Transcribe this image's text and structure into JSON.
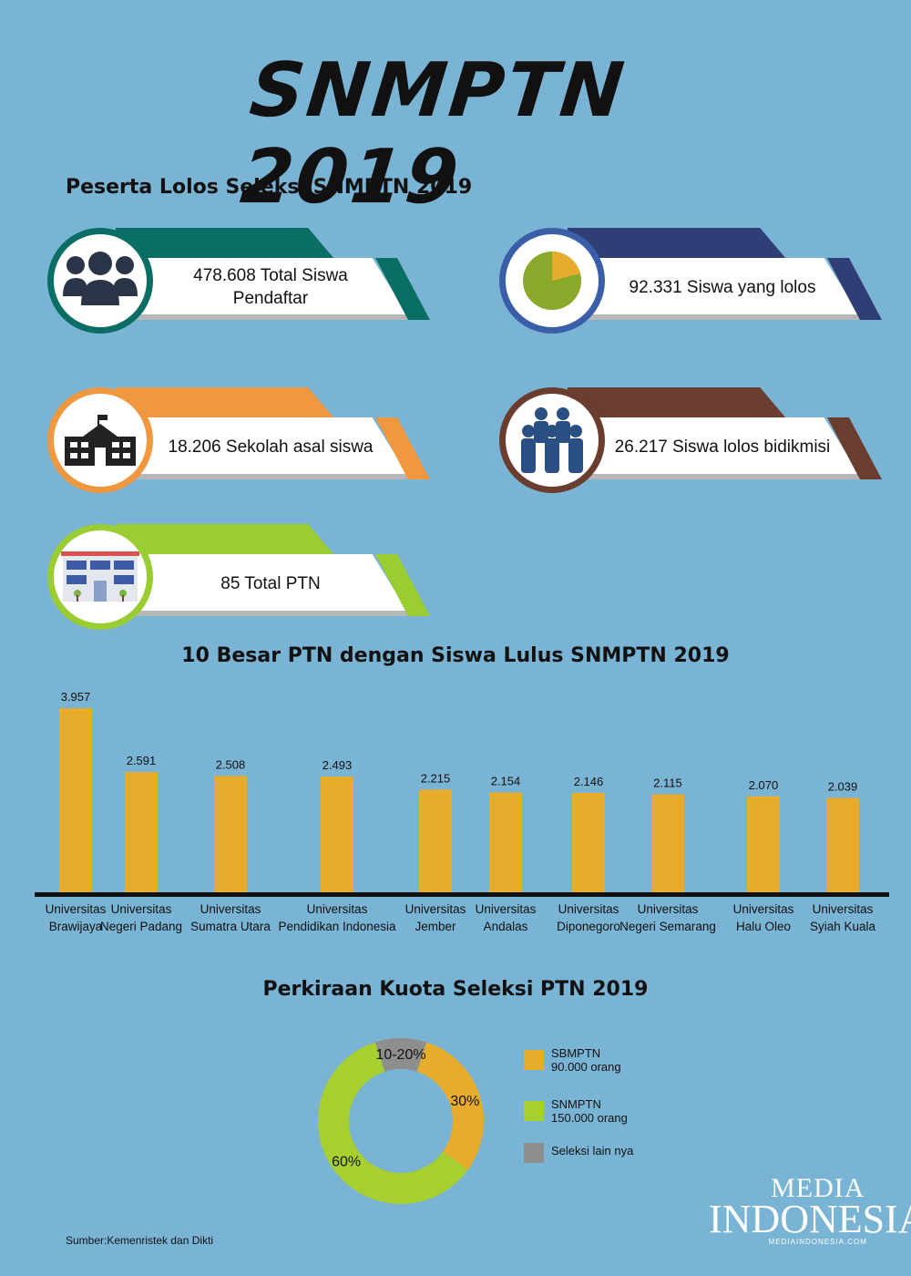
{
  "title": "SNMPTN 2019",
  "section1_title": "Peserta Lolos Seleksi SNMPTN 2019",
  "stats": [
    {
      "label_line1": "478.608 Total Siswa",
      "label_line2": "Pendaftar",
      "color": "#0b6e65",
      "icon": "group-people-icon"
    },
    {
      "label_line1": "92.331 Siswa yang lolos",
      "label_line2": "",
      "color": "#2f3e75",
      "icon": "pie-chart-icon"
    },
    {
      "label_line1": "18.206 Sekolah asal siswa",
      "label_line2": "",
      "color": "#f0983f",
      "icon": "school-building-icon"
    },
    {
      "label_line1": "26.217 Siswa lolos bidikmisi",
      "label_line2": "",
      "color": "#6b3d2e",
      "icon": "crowd-icon"
    },
    {
      "label_line1": "85 Total PTN",
      "label_line2": "",
      "color": "#9acd32",
      "icon": "university-building-icon"
    }
  ],
  "section2_title": "10 Besar PTN dengan Siswa Lulus SNMPTN 2019",
  "section3_title": "Perkiraan Kuota Seleksi PTN 2019",
  "donut": {
    "labels": [
      "30%",
      "60%",
      "10-20%"
    ]
  },
  "legend": [
    {
      "line1": "SBMPTN",
      "line2": "90.000 orang",
      "color": "#e8ac2d"
    },
    {
      "line1": "SNMPTN",
      "line2": "150.000 orang",
      "color": "#a6cf2f"
    },
    {
      "line1": "Seleksi lain nya",
      "line2": "",
      "color": "#8e8e8e"
    }
  ],
  "source": "Sumber:Kemenristek dan Dikti",
  "logo": {
    "line1": "MEDIA",
    "line2": "INDONESIA",
    "line3": "MEDIAINDONESIA.COM"
  },
  "chart_data": [
    {
      "type": "bar",
      "title": "10 Besar PTN dengan Siswa Lulus SNMPTN 2019",
      "categories": [
        [
          "Universitas",
          "Brawijaya"
        ],
        [
          "Universitas",
          "Negeri Padang"
        ],
        [
          "Universitas",
          "Sumatra Utara"
        ],
        [
          "Universitas",
          "Pendidikan Indonesia"
        ],
        [
          "Universitas",
          "Jember"
        ],
        [
          "Universitas",
          "Andalas"
        ],
        [
          "Universitas",
          "Diponegoro"
        ],
        [
          "Universitas",
          "Negeri Semarang"
        ],
        [
          "Universitas",
          "Halu Oleo"
        ],
        [
          "Universitas",
          "Syiah Kuala"
        ]
      ],
      "values": [
        3957,
        2591,
        2508,
        2493,
        2215,
        2154,
        2146,
        2115,
        2070,
        2039
      ],
      "value_labels": [
        "3.957",
        "2.591",
        "2.508",
        "2.493",
        "2.215",
        "2.154",
        "2.146",
        "2.115",
        "2.070",
        "2.039"
      ],
      "bar_color": "#e8ac2d"
    },
    {
      "type": "pie",
      "title": "Perkiraan Kuota Seleksi PTN 2019",
      "labels": [
        "SBMPTN",
        "SNMPTN",
        "Seleksi lain nya"
      ],
      "values": [
        30,
        60,
        10
      ],
      "value_labels": [
        "30%",
        "60%",
        "10-20%"
      ],
      "colors": [
        "#e8ac2d",
        "#a6cf2f",
        "#8e8e8e"
      ]
    }
  ]
}
